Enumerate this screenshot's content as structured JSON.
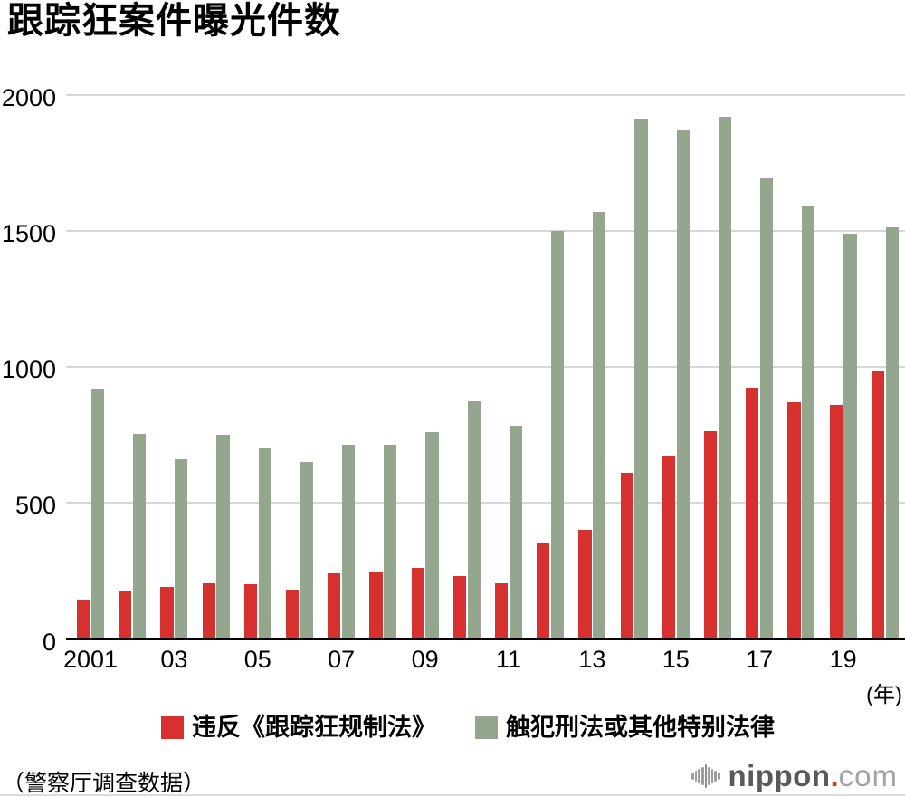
{
  "title": "跟踪狂案件曝光件数",
  "source_note": "（警察厅调查数据）",
  "logo": {
    "icon": "soundwave-icon",
    "text_bold": "nippon",
    "separator": ".",
    "text_light": "com"
  },
  "colors": {
    "series_regulation_law": "#d7312f",
    "series_criminal_law": "#95a68f",
    "gridline": "#d7d7d7",
    "axis": "#000000",
    "logo_gray": "#9e9e9e",
    "logo_red": "#e53528"
  },
  "chart_data": {
    "type": "bar",
    "title": "跟踪狂案件曝光件数",
    "xlabel": "(年)",
    "ylabel": "",
    "ylim": [
      0,
      2000
    ],
    "y_ticks": [
      0,
      500,
      1000,
      1500,
      2000
    ],
    "grid": true,
    "legend_position": "bottom",
    "categories": [
      2001,
      2002,
      2003,
      2004,
      2005,
      2006,
      2007,
      2008,
      2009,
      2010,
      2011,
      2012,
      2013,
      2014,
      2015,
      2016,
      2017,
      2018,
      2019,
      2020
    ],
    "x_ticks": [
      {
        "index": 0,
        "label": "2001"
      },
      {
        "index": 2,
        "label": "03"
      },
      {
        "index": 4,
        "label": "05"
      },
      {
        "index": 6,
        "label": "07"
      },
      {
        "index": 8,
        "label": "09"
      },
      {
        "index": 10,
        "label": "11"
      },
      {
        "index": 12,
        "label": "13"
      },
      {
        "index": 14,
        "label": "15"
      },
      {
        "index": 16,
        "label": "17"
      },
      {
        "index": 18,
        "label": "19"
      }
    ],
    "series": [
      {
        "name": "违反《跟踪狂规制法》",
        "key": "regulation-law",
        "color": "#d7312f",
        "values": [
          140,
          175,
          190,
          205,
          200,
          180,
          240,
          245,
          260,
          230,
          205,
          350,
          400,
          610,
          675,
          765,
          925,
          870,
          860,
          985
        ]
      },
      {
        "name": "触犯刑法或其他特别法律",
        "key": "criminal-law",
        "color": "#95a68f",
        "values": [
          920,
          755,
          660,
          750,
          700,
          650,
          715,
          715,
          760,
          875,
          785,
          1500,
          1570,
          1915,
          1870,
          1920,
          1695,
          1595,
          1490,
          1515
        ]
      }
    ]
  }
}
